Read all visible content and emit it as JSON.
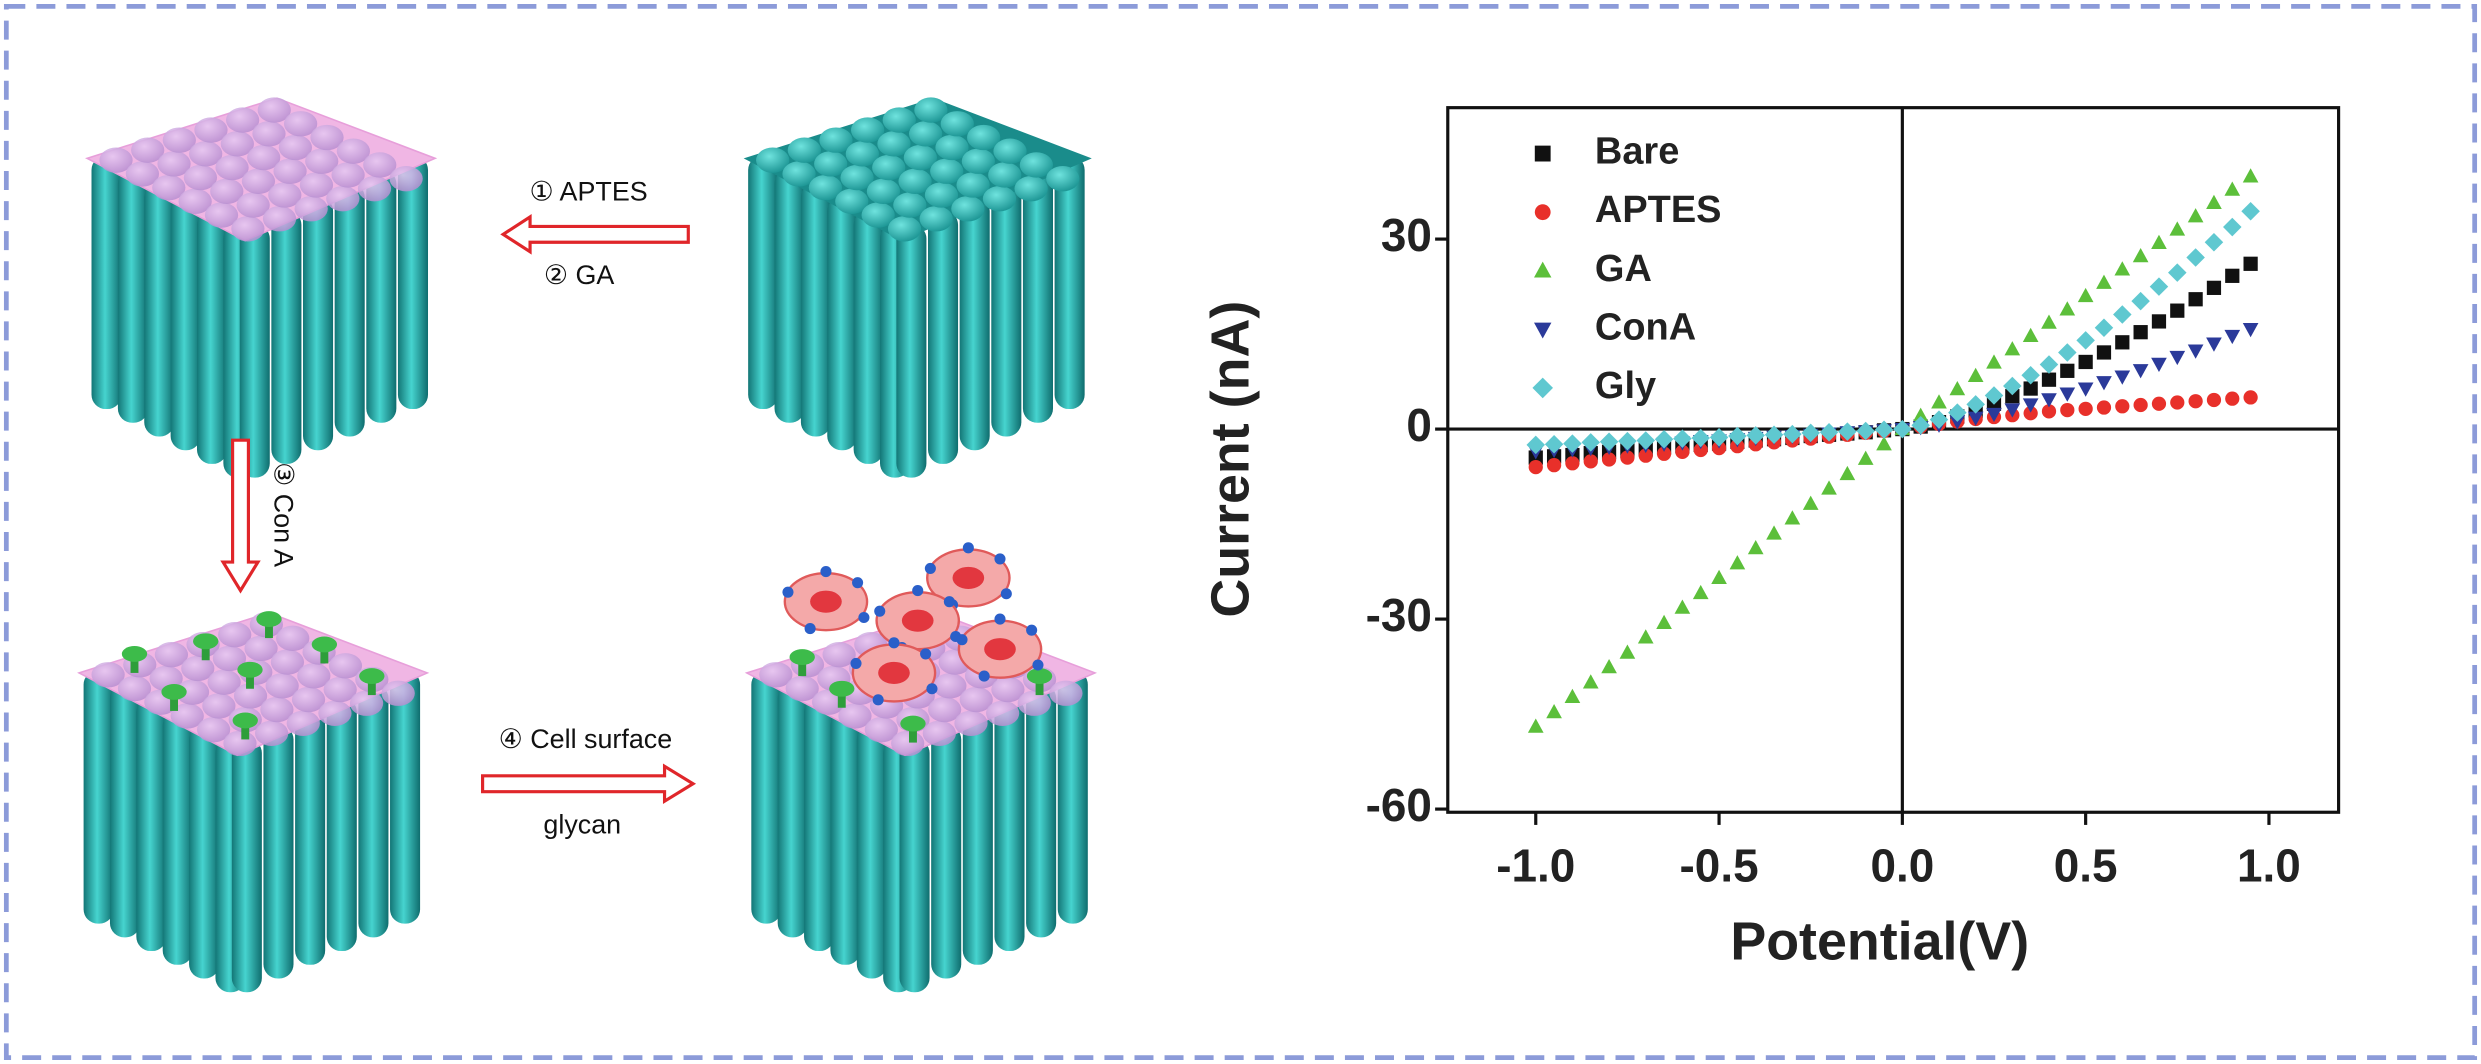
{
  "diagram": {
    "steps": [
      "① APTES",
      "② GA",
      "③ Con A",
      "④ Cell surface",
      "glycan"
    ]
  },
  "chart_data": {
    "type": "scatter",
    "x_label": "Potential(V)",
    "y_label": "Current (nA)",
    "x": [
      -1,
      -0.95,
      -0.9,
      -0.85,
      -0.8,
      -0.75,
      -0.7,
      -0.65,
      -0.6,
      -0.55,
      -0.5,
      -0.45,
      -0.4,
      -0.35,
      -0.3,
      -0.25,
      -0.2,
      -0.15,
      -0.1,
      -0.05,
      0,
      0.05,
      0.1,
      0.15,
      0.2,
      0.25,
      0.3,
      0.35,
      0.4,
      0.45,
      0.5,
      0.55,
      0.6,
      0.65,
      0.7,
      0.75,
      0.8,
      0.85,
      0.9,
      0.95
    ],
    "series": [
      {
        "name": "Bare",
        "color": "#111111",
        "shape": "square",
        "values": [
          -4.5,
          -4.3,
          -4.1,
          -3.8,
          -3.6,
          -3.4,
          -3.2,
          -2.9,
          -2.7,
          -2.5,
          -2.3,
          -2.0,
          -1.8,
          -1.6,
          -1.4,
          -1.1,
          -0.9,
          -0.7,
          -0.5,
          -0.2,
          0,
          0.4,
          1.1,
          2.0,
          2.9,
          4.0,
          5.2,
          6.4,
          7.8,
          9.2,
          10.6,
          12.1,
          13.7,
          15.3,
          17.0,
          18.7,
          20.5,
          22.3,
          24.2,
          26.1
        ]
      },
      {
        "name": "APTES",
        "color": "#e8302a",
        "shape": "circle",
        "values": [
          -6.0,
          -5.7,
          -5.4,
          -5.1,
          -4.8,
          -4.5,
          -4.2,
          -3.9,
          -3.6,
          -3.3,
          -3.0,
          -2.7,
          -2.4,
          -2.1,
          -1.8,
          -1.5,
          -1.2,
          -0.9,
          -0.6,
          -0.3,
          0,
          0.4,
          0.8,
          1.2,
          1.6,
          1.9,
          2.2,
          2.5,
          2.8,
          3.0,
          3.2,
          3.4,
          3.6,
          3.8,
          4.0,
          4.2,
          4.4,
          4.6,
          4.8,
          5.0
        ]
      },
      {
        "name": "GA",
        "color": "#5cbf3a",
        "shape": "triangle-up",
        "values": [
          -47.0,
          -44.7,
          -42.3,
          -40.0,
          -37.6,
          -35.3,
          -32.9,
          -30.6,
          -28.2,
          -25.9,
          -23.5,
          -21.2,
          -18.8,
          -16.5,
          -14.1,
          -11.8,
          -9.4,
          -7.1,
          -4.7,
          -2.4,
          0,
          2.1,
          4.2,
          6.3,
          8.4,
          10.5,
          12.6,
          14.7,
          16.8,
          18.9,
          21.0,
          23.1,
          25.2,
          27.3,
          29.4,
          31.5,
          33.6,
          35.7,
          37.8,
          39.9
        ]
      },
      {
        "name": "ConA",
        "color": "#2b3a9a",
        "shape": "triangle-down",
        "values": [
          -3.5,
          -3.3,
          -3.2,
          -3.0,
          -2.8,
          -2.6,
          -2.5,
          -2.3,
          -2.1,
          -1.9,
          -1.8,
          -1.6,
          -1.4,
          -1.2,
          -1.1,
          -0.9,
          -0.7,
          -0.5,
          -0.4,
          -0.2,
          0,
          0.3,
          0.7,
          1.2,
          1.8,
          2.4,
          3.1,
          3.9,
          4.7,
          5.6,
          6.4,
          7.4,
          8.3,
          9.3,
          10.3,
          11.4,
          12.4,
          13.5,
          14.7,
          15.8
        ]
      },
      {
        "name": "Gly",
        "color": "#5fc8d0",
        "shape": "diamond",
        "values": [
          -2.5,
          -2.4,
          -2.3,
          -2.1,
          -2.0,
          -1.9,
          -1.8,
          -1.6,
          -1.5,
          -1.4,
          -1.3,
          -1.1,
          -1.0,
          -0.9,
          -0.8,
          -0.6,
          -0.5,
          -0.4,
          -0.3,
          -0.1,
          0,
          0.6,
          1.5,
          2.6,
          3.9,
          5.3,
          6.8,
          8.5,
          10.2,
          12.1,
          14.0,
          16.0,
          18.1,
          20.2,
          22.5,
          24.7,
          27.1,
          29.5,
          31.9,
          34.4
        ]
      }
    ],
    "xlim": [
      -1.24,
      1.19
    ],
    "ylim": [
      -60.5,
      50.75
    ],
    "xticks": [
      {
        "value": -1,
        "label": "-1.0"
      },
      -0.5,
      {
        "value": 0,
        "label": "0.0"
      },
      0.5,
      {
        "value": 1,
        "label": "1.0"
      }
    ],
    "yticks": [
      -60,
      -30,
      0,
      30
    ],
    "legend": "upper left",
    "zero_lines": true
  }
}
